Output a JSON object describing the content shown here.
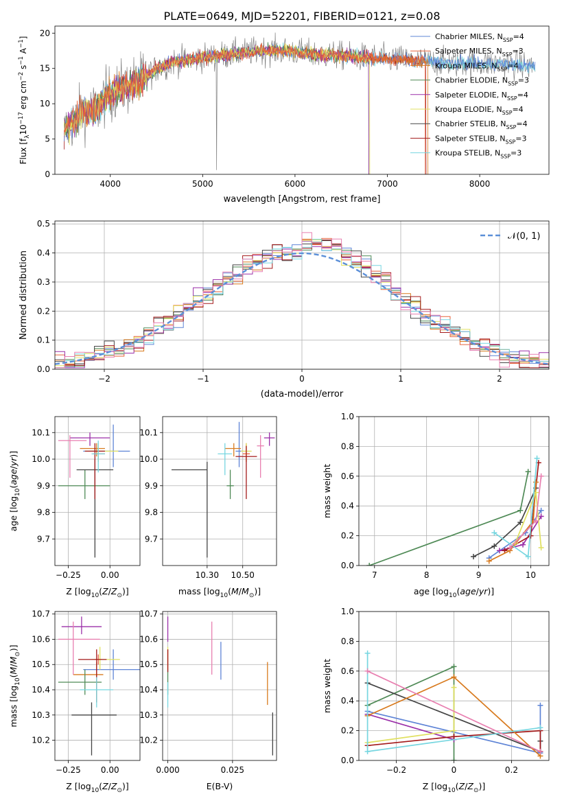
{
  "figure_title": "PLATE=0649, MJD=52201, FIBERID=0121, z=0.08",
  "colors": {
    "Chabrier MILES": "#5e84d6",
    "Salpeter MILES": "#e8623a",
    "Kroupa MILES": "#d87a1e",
    "Chabrier ELODIE": "#4f8a56",
    "Salpeter ELODIE": "#9a2fa8",
    "Kroupa ELODIE": "#e0e060",
    "Chabrier STELIB": "#444444",
    "Salpeter STELIB": "#a31919",
    "Kroupa STELIB": "#76d6e0",
    "grid": "#b0b0b0",
    "normal": "#5b8fd8",
    "pink": "#e87fb0",
    "lime": "#d4ec60"
  },
  "chart_data": [
    {
      "id": "spectrum",
      "type": "line",
      "xlabel": "wavelength [Angstrom, rest frame]",
      "xlim": [
        3400,
        8750
      ],
      "ylim": [
        0,
        21
      ],
      "xticks": [
        4000,
        5000,
        6000,
        7000,
        8000
      ],
      "yticks": [
        0,
        5,
        10,
        15,
        20
      ],
      "legend_loc": "right",
      "grid": false,
      "continuum": {
        "x": [
          3500,
          3700,
          3850,
          3950,
          4100,
          4300,
          4500,
          4700,
          5000,
          5300,
          5600,
          5900,
          6200,
          6500,
          6800,
          7100,
          7400,
          7700,
          8000,
          8300,
          8600
        ],
        "y": [
          6.0,
          9.0,
          9.0,
          11.0,
          12.0,
          13.0,
          15.0,
          16.0,
          16.5,
          17.0,
          17.5,
          17.5,
          17.0,
          16.8,
          16.5,
          16.3,
          16.0,
          15.8,
          15.7,
          15.6,
          15.3
        ]
      },
      "legend": [
        {
          "label": "Chabrier MILES, N",
          "sub": "SSP",
          "tail": "=4",
          "color_key": "Chabrier MILES"
        },
        {
          "label": "Salpeter MILES, N",
          "sub": "SSP",
          "tail": "=3",
          "color_key": "Salpeter MILES"
        },
        {
          "label": "Kroupa MILES, N",
          "sub": "SSP",
          "tail": "=4",
          "color_key": "Kroupa MILES"
        },
        {
          "label": "Chabrier ELODIE, N",
          "sub": "SSP",
          "tail": "=3",
          "color_key": "Chabrier ELODIE"
        },
        {
          "label": "Salpeter ELODIE, N",
          "sub": "SSP",
          "tail": "=4",
          "color_key": "Salpeter ELODIE"
        },
        {
          "label": "Kroupa ELODIE, N",
          "sub": "SSP",
          "tail": "=4",
          "color_key": "Kroupa ELODIE"
        },
        {
          "label": "Chabrier STELIB, N",
          "sub": "SSP",
          "tail": "=4",
          "color_key": "Chabrier STELIB"
        },
        {
          "label": "Salpeter STELIB, N",
          "sub": "SSP",
          "tail": "=3",
          "color_key": "Salpeter STELIB"
        },
        {
          "label": "Kroupa STELIB, N",
          "sub": "SSP",
          "tail": "=3",
          "color_key": "Kroupa STELIB"
        }
      ]
    },
    {
      "id": "residuals",
      "type": "histogram",
      "xlabel": "(data-model)/error",
      "ylabel": "Normed distribution",
      "xlim": [
        -2.5,
        2.5
      ],
      "ylim": [
        0,
        0.51
      ],
      "xticks": [
        -2,
        -1,
        0,
        1,
        2
      ],
      "yticks": [
        0.0,
        0.1,
        0.2,
        0.3,
        0.4,
        0.5
      ],
      "grid": true,
      "legend_loc": "top-right",
      "bin_width": 0.1,
      "normal_label": "(0, 1)"
    },
    {
      "id": "age-vs-Z",
      "type": "errorbar",
      "xlabel": "Z [log",
      "ylabel": "age  [log",
      "xlim": [
        -0.33,
        0.18
      ],
      "ylim": [
        9.6,
        10.16
      ],
      "xticks": [
        -0.25,
        0.0
      ],
      "yticks": [
        9.7,
        9.8,
        9.9,
        10.0,
        10.1
      ],
      "grid": true,
      "points": [
        {
          "color_key": "Chabrier MILES",
          "x": 0.02,
          "y": 10.03,
          "xerr": [
            0.18,
            0.1
          ],
          "yerr": [
            0.06,
            0.1
          ]
        },
        {
          "color_key": "Salpeter MILES",
          "x": -0.07,
          "y": 10.02,
          "xerr": [
            0.03,
            0.04
          ],
          "yerr": [
            0.03,
            0.04
          ]
        },
        {
          "color_key": "Kroupa MILES",
          "x": -0.08,
          "y": 10.04,
          "xerr": [
            0.1,
            0.05
          ],
          "yerr": [
            0.03,
            0.02
          ]
        },
        {
          "color_key": "Chabrier ELODIE",
          "x": -0.15,
          "y": 9.9,
          "xerr": [
            0.16,
            0.15
          ],
          "yerr": [
            0.05,
            0.06
          ]
        },
        {
          "color_key": "Salpeter ELODIE",
          "x": -0.12,
          "y": 10.08,
          "xerr": [
            0.12,
            0.12
          ],
          "yerr": [
            0.03,
            0.02
          ]
        },
        {
          "color_key": "Kroupa ELODIE",
          "x": -0.07,
          "y": 10.03,
          "xerr": [
            0.08,
            0.12
          ],
          "yerr": [
            0.04,
            0.03
          ]
        },
        {
          "color_key": "Chabrier STELIB",
          "x": -0.09,
          "y": 9.96,
          "xerr": [
            0.11,
            0.11
          ],
          "yerr": [
            0.33,
            0.04
          ]
        },
        {
          "color_key": "Salpeter STELIB",
          "x": -0.09,
          "y": 10.03,
          "xerr": [
            0.06,
            0.06
          ],
          "yerr": [
            0.18,
            0.03
          ]
        },
        {
          "color_key": "Kroupa STELIB",
          "x": -0.07,
          "y": 10.02,
          "xerr": [
            0.04,
            0.04
          ],
          "yerr": [
            0.07,
            0.05
          ]
        },
        {
          "color_key": "pink",
          "x": -0.24,
          "y": 10.07,
          "xerr": [
            0.07,
            0.1
          ],
          "yerr": [
            0.14,
            0.02
          ]
        }
      ]
    },
    {
      "id": "age-vs-mass",
      "type": "errorbar",
      "xlabel": "mass [log",
      "ylabel": "",
      "xlim": [
        10.05,
        10.69
      ],
      "ylim": [
        9.6,
        10.16
      ],
      "xticks": [
        10.3,
        10.5
      ],
      "yticks": [
        9.7,
        9.8,
        9.9,
        10.0,
        10.1
      ],
      "grid": true,
      "points": [
        {
          "color_key": "Chabrier MILES",
          "x": 10.48,
          "y": 10.03,
          "xerr": [
            0.02,
            0.02
          ],
          "yerr": [
            0.06,
            0.11
          ]
        },
        {
          "color_key": "Salpeter MILES",
          "x": 10.52,
          "y": 10.02,
          "xerr": [
            0.02,
            0.02
          ],
          "yerr": [
            0.03,
            0.04
          ]
        },
        {
          "color_key": "Kroupa MILES",
          "x": 10.45,
          "y": 10.04,
          "xerr": [
            0.05,
            0.04
          ],
          "yerr": [
            0.03,
            0.02
          ]
        },
        {
          "color_key": "Chabrier ELODIE",
          "x": 10.43,
          "y": 9.9,
          "xerr": [
            0.02,
            0.02
          ],
          "yerr": [
            0.05,
            0.06
          ]
        },
        {
          "color_key": "Salpeter ELODIE",
          "x": 10.65,
          "y": 10.08,
          "xerr": [
            0.03,
            0.03
          ],
          "yerr": [
            0.03,
            0.02
          ]
        },
        {
          "color_key": "Kroupa ELODIE",
          "x": 10.52,
          "y": 10.03,
          "xerr": [
            0.03,
            0.03
          ],
          "yerr": [
            0.04,
            0.03
          ]
        },
        {
          "color_key": "Chabrier STELIB",
          "x": 10.3,
          "y": 9.96,
          "xerr": [
            0.2,
            0.0
          ],
          "yerr": [
            0.33,
            0.03
          ]
        },
        {
          "color_key": "Salpeter STELIB",
          "x": 10.52,
          "y": 10.01,
          "xerr": [
            0.06,
            0.06
          ],
          "yerr": [
            0.16,
            0.04
          ]
        },
        {
          "color_key": "Kroupa STELIB",
          "x": 10.4,
          "y": 10.02,
          "xerr": [
            0.04,
            0.04
          ],
          "yerr": [
            0.08,
            0.04
          ]
        },
        {
          "color_key": "pink",
          "x": 10.6,
          "y": 10.05,
          "xerr": [
            0.02,
            0.02
          ],
          "yerr": [
            0.12,
            0.04
          ]
        }
      ]
    },
    {
      "id": "mass-weight-vs-age",
      "type": "line",
      "xlabel": "age  [log",
      "ylabel": "mass weight",
      "xlim": [
        6.7,
        10.35
      ],
      "ylim": [
        0,
        1.0
      ],
      "xticks": [
        7,
        8,
        9,
        10
      ],
      "yticks": [
        0.0,
        0.2,
        0.4,
        0.6,
        0.8,
        1.0
      ],
      "grid": true,
      "series": [
        {
          "color_key": "Chabrier ELODIE",
          "x": [
            6.9,
            9.8,
            9.95
          ],
          "y": [
            0.0,
            0.37,
            0.63
          ]
        },
        {
          "color_key": "Chabrier STELIB",
          "x": [
            8.9,
            9.3,
            9.8,
            10.1
          ],
          "y": [
            0.06,
            0.13,
            0.29,
            0.52
          ]
        },
        {
          "color_key": "Chabrier MILES",
          "x": [
            9.2,
            9.9,
            10.2
          ],
          "y": [
            0.05,
            0.22,
            0.37
          ]
        },
        {
          "color_key": "Salpeter ELODIE",
          "x": [
            9.4,
            9.85,
            10.2
          ],
          "y": [
            0.1,
            0.14,
            0.33
          ]
        },
        {
          "color_key": "Salpeter STELIB",
          "x": [
            9.5,
            10.0,
            10.15
          ],
          "y": [
            0.1,
            0.2,
            0.69
          ]
        },
        {
          "color_key": "Kroupa MILES",
          "x": [
            9.2,
            9.6,
            10.05,
            10.1
          ],
          "y": [
            0.03,
            0.1,
            0.3,
            0.56
          ]
        },
        {
          "color_key": "Kroupa ELODIE",
          "x": [
            9.7,
            10.1,
            10.2
          ],
          "y": [
            0.15,
            0.49,
            0.12
          ]
        },
        {
          "color_key": "Kroupa STELIB",
          "x": [
            9.3,
            9.95,
            10.12
          ],
          "y": [
            0.22,
            0.06,
            0.72
          ]
        },
        {
          "color_key": "pink",
          "x": [
            9.6,
            10.1,
            10.2
          ],
          "y": [
            0.12,
            0.3,
            0.6
          ]
        }
      ]
    },
    {
      "id": "mass-vs-Z",
      "type": "errorbar",
      "xlabel": "Z [log",
      "ylabel": "mass [log",
      "xlim": [
        -0.33,
        0.18
      ],
      "ylim": [
        10.12,
        10.71
      ],
      "xticks": [
        -0.25,
        0.0
      ],
      "yticks": [
        10.2,
        10.3,
        10.4,
        10.5,
        10.6,
        10.7
      ],
      "grid": true,
      "points": [
        {
          "color_key": "Chabrier MILES",
          "x": 0.02,
          "y": 10.48,
          "xerr": [
            0.18,
            0.16
          ],
          "yerr": [
            0.04,
            0.08
          ]
        },
        {
          "color_key": "Salpeter MILES",
          "x": -0.07,
          "y": 10.52,
          "xerr": [
            0.02,
            0.02
          ],
          "yerr": [
            0.02,
            0.02
          ]
        },
        {
          "color_key": "Kroupa MILES",
          "x": -0.08,
          "y": 10.46,
          "xerr": [
            0.14,
            0.04
          ],
          "yerr": [
            0.11,
            0.05
          ]
        },
        {
          "color_key": "Chabrier ELODIE",
          "x": -0.15,
          "y": 10.43,
          "xerr": [
            0.16,
            0.1
          ],
          "yerr": [
            0.05,
            0.05
          ]
        },
        {
          "color_key": "Salpeter ELODIE",
          "x": -0.17,
          "y": 10.65,
          "xerr": [
            0.12,
            0.12
          ],
          "yerr": [
            0.03,
            0.04
          ]
        },
        {
          "color_key": "Kroupa ELODIE",
          "x": -0.06,
          "y": 10.52,
          "xerr": [
            0.05,
            0.12
          ],
          "yerr": [
            0.04,
            0.05
          ]
        },
        {
          "color_key": "Chabrier STELIB",
          "x": -0.11,
          "y": 10.3,
          "xerr": [
            0.12,
            0.15
          ],
          "yerr": [
            0.16,
            0.05
          ]
        },
        {
          "color_key": "Salpeter STELIB",
          "x": -0.08,
          "y": 10.52,
          "xerr": [
            0.11,
            0.06
          ],
          "yerr": [
            0.17,
            0.04
          ]
        },
        {
          "color_key": "Kroupa STELIB",
          "x": -0.08,
          "y": 10.4,
          "xerr": [
            0.1,
            0.1
          ],
          "yerr": [
            0.07,
            0.05
          ]
        },
        {
          "color_key": "pink",
          "x": -0.22,
          "y": 10.6,
          "xerr": [
            0.09,
            0.16
          ],
          "yerr": [
            0.14,
            0.07
          ]
        }
      ]
    },
    {
      "id": "mass-vs-EBV",
      "type": "errorbar",
      "xlabel": "E(B-V)",
      "ylabel": "",
      "xlim": [
        -0.002,
        0.042
      ],
      "ylim": [
        10.12,
        10.71
      ],
      "xticks": [
        0.0,
        0.025
      ],
      "yticks": [
        10.2,
        10.3,
        10.4,
        10.5,
        10.6,
        10.7
      ],
      "grid": true,
      "points": [
        {
          "color_key": "Chabrier MILES",
          "x": 0.0205,
          "y": 10.52,
          "xerr": [
            0,
            0
          ],
          "yerr": [
            0.08,
            0.07
          ]
        },
        {
          "color_key": "Salpeter MILES",
          "x": 0.0,
          "y": 10.52,
          "xerr": [
            0,
            0
          ],
          "yerr": [
            0.04,
            0.04
          ]
        },
        {
          "color_key": "Kroupa MILES",
          "x": 0.0385,
          "y": 10.42,
          "xerr": [
            0,
            0
          ],
          "yerr": [
            0.08,
            0.09
          ]
        },
        {
          "color_key": "Chabrier ELODIE",
          "x": 0.0,
          "y": 10.43,
          "xerr": [
            0,
            0
          ],
          "yerr": [
            0.05,
            0.05
          ]
        },
        {
          "color_key": "Salpeter ELODIE",
          "x": 0.0,
          "y": 10.65,
          "xerr": [
            0,
            0
          ],
          "yerr": [
            0.06,
            0.04
          ]
        },
        {
          "color_key": "Kroupa ELODIE",
          "x": 0.0,
          "y": 10.52,
          "xerr": [
            0,
            0
          ],
          "yerr": [
            0.04,
            0.05
          ]
        },
        {
          "color_key": "Chabrier STELIB",
          "x": 0.0405,
          "y": 10.3,
          "xerr": [
            0,
            0
          ],
          "yerr": [
            0.16,
            0.01
          ]
        },
        {
          "color_key": "Salpeter STELIB",
          "x": 0.0,
          "y": 10.52,
          "xerr": [
            0,
            0
          ],
          "yerr": [
            0.05,
            0.04
          ]
        },
        {
          "color_key": "Kroupa STELIB",
          "x": 0.0,
          "y": 10.38,
          "xerr": [
            0,
            0
          ],
          "yerr": [
            0.05,
            0.05
          ]
        },
        {
          "color_key": "pink",
          "x": 0.017,
          "y": 10.57,
          "xerr": [
            0,
            0
          ],
          "yerr": [
            0.11,
            0.1
          ]
        }
      ]
    },
    {
      "id": "mass-weight-vs-Z",
      "type": "line",
      "xlabel": "Z [log",
      "ylabel": "mass weight",
      "xlim": [
        -0.33,
        0.33
      ],
      "ylim": [
        0,
        1.0
      ],
      "xticks": [
        -0.2,
        0.0,
        0.2
      ],
      "yticks": [
        0.0,
        0.2,
        0.4,
        0.6,
        0.8,
        1.0
      ],
      "grid": true,
      "series": [
        {
          "color_key": "Chabrier ELODIE",
          "x": [
            -0.3,
            0.0,
            0.0
          ],
          "y": [
            0.37,
            0.63,
            0.0
          ]
        },
        {
          "color_key": "Chabrier STELIB",
          "x": [
            -0.3,
            0.3,
            0.3
          ],
          "y": [
            0.52,
            0.06,
            0.13
          ]
        },
        {
          "color_key": "Chabrier MILES",
          "x": [
            -0.3,
            0.3,
            0.3
          ],
          "y": [
            0.33,
            0.05,
            0.37
          ]
        },
        {
          "color_key": "Salpeter ELODIE",
          "x": [
            -0.3,
            0.0,
            0.0
          ],
          "y": [
            0.31,
            0.14,
            0.16
          ]
        },
        {
          "color_key": "Salpeter STELIB",
          "x": [
            -0.3,
            0.0,
            0.3,
            0.3
          ],
          "y": [
            0.1,
            0.16,
            0.2,
            0.06
          ]
        },
        {
          "color_key": "Kroupa MILES",
          "x": [
            -0.3,
            0.0,
            0.3
          ],
          "y": [
            0.3,
            0.56,
            0.03
          ]
        },
        {
          "color_key": "Kroupa ELODIE",
          "x": [
            -0.3,
            0.0,
            0.0
          ],
          "y": [
            0.12,
            0.2,
            0.49
          ]
        },
        {
          "color_key": "Kroupa STELIB",
          "x": [
            -0.3,
            -0.3,
            0.3
          ],
          "y": [
            0.72,
            0.06,
            0.22
          ]
        },
        {
          "color_key": "pink",
          "x": [
            -0.3,
            0.3
          ],
          "y": [
            0.6,
            0.06
          ]
        }
      ]
    }
  ]
}
